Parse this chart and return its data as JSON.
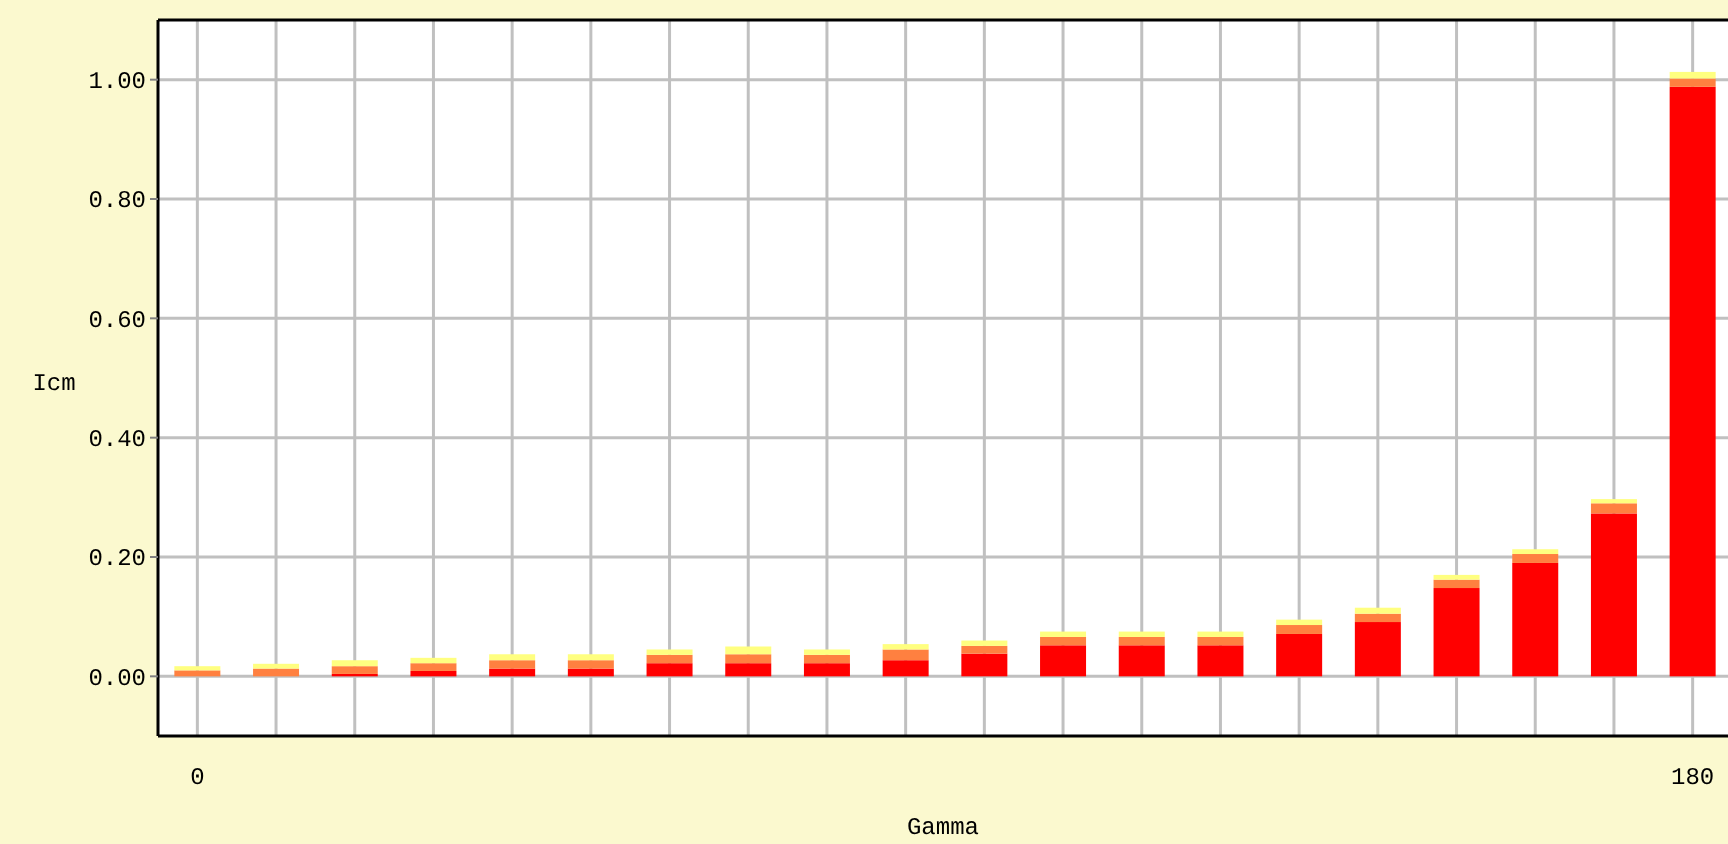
{
  "chart_data": {
    "type": "bar",
    "stacked": true,
    "xlabel": "Gamma",
    "ylabel": "Icm",
    "categories": [
      "0",
      null,
      null,
      null,
      null,
      null,
      null,
      null,
      null,
      null,
      null,
      null,
      null,
      null,
      null,
      null,
      null,
      null,
      null,
      "180"
    ],
    "series": [
      {
        "color": "#ff0000",
        "values": [
          0,
          0,
          0.004,
          0.009,
          0.013,
          0.013,
          0.022,
          0.022,
          0.022,
          0.027,
          0.038,
          0.052,
          0.052,
          0.052,
          0.071,
          0.091,
          0.148,
          0.19,
          0.273,
          0.988
        ]
      },
      {
        "color": "#ff8040",
        "values": [
          0.01,
          0.013,
          0.013,
          0.013,
          0.014,
          0.014,
          0.014,
          0.015,
          0.014,
          0.018,
          0.013,
          0.014,
          0.014,
          0.014,
          0.015,
          0.014,
          0.014,
          0.015,
          0.017,
          0.014
        ]
      },
      {
        "color": "#ffff80",
        "values": [
          0.007,
          0.008,
          0.01,
          0.009,
          0.01,
          0.01,
          0.009,
          0.013,
          0.009,
          0.009,
          0.009,
          0.009,
          0.009,
          0.009,
          0.009,
          0.01,
          0.008,
          0.008,
          0.007,
          0.011
        ]
      }
    ],
    "ylim": [
      -0.1,
      1.1
    ],
    "yticks": [
      {
        "value": 0,
        "label": "0.00"
      },
      {
        "value": 0.2,
        "label": "0.20"
      },
      {
        "value": 0.4,
        "label": "0.40"
      },
      {
        "value": 0.6,
        "label": "0.60"
      },
      {
        "value": 0.8,
        "label": "0.80"
      },
      {
        "value": 1,
        "label": "1.00"
      }
    ],
    "grid": true
  }
}
